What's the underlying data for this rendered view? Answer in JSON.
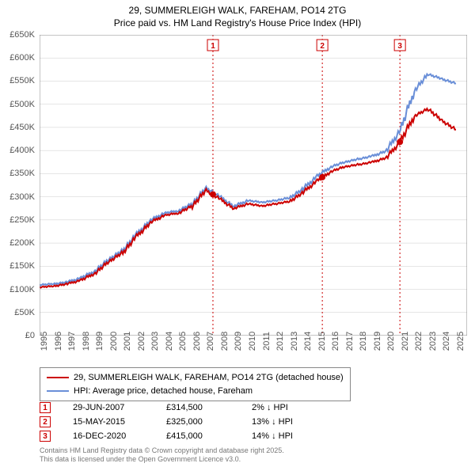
{
  "title": {
    "line1": "29, SUMMERLEIGH WALK, FAREHAM, PO14 2TG",
    "line2": "Price paid vs. HM Land Registry's House Price Index (HPI)",
    "fontsize": 12
  },
  "chart": {
    "type": "line",
    "background_color": "#ffffff",
    "grid_color": "#cccccc",
    "axis_color": "#888888",
    "x": {
      "years": [
        1995,
        1996,
        1997,
        1998,
        1999,
        2000,
        2001,
        2002,
        2003,
        2004,
        2005,
        2006,
        2007,
        2008,
        2009,
        2010,
        2011,
        2012,
        2013,
        2014,
        2015,
        2016,
        2017,
        2018,
        2019,
        2020,
        2021,
        2022,
        2023,
        2024,
        2025
      ],
      "min": 1995,
      "max": 2025.8
    },
    "y": {
      "min": 0,
      "max": 650,
      "step": 50,
      "labels": [
        "£0",
        "£50K",
        "£100K",
        "£150K",
        "£200K",
        "£250K",
        "£300K",
        "£350K",
        "£400K",
        "£450K",
        "£500K",
        "£550K",
        "£600K",
        "£650K"
      ]
    },
    "series": [
      {
        "name": "29, SUMMERLEIGH WALK, FAREHAM, PO14 2TG (detached house)",
        "color": "#cc0000",
        "width": 2,
        "data_yearly": [
          105,
          107,
          112,
          120,
          135,
          160,
          180,
          215,
          245,
          260,
          265,
          280,
          315,
          295,
          275,
          285,
          280,
          285,
          290,
          310,
          335,
          355,
          365,
          370,
          375,
          385,
          420,
          475,
          490,
          465,
          445
        ]
      },
      {
        "name": "HPI: Average price, detached house, Fareham",
        "color": "#6a8fd8",
        "width": 2,
        "data_yearly": [
          110,
          112,
          116,
          125,
          140,
          165,
          185,
          220,
          250,
          265,
          270,
          285,
          320,
          300,
          280,
          292,
          288,
          292,
          298,
          318,
          345,
          365,
          375,
          382,
          388,
          400,
          445,
          530,
          565,
          555,
          545
        ]
      }
    ],
    "markers": [
      {
        "num": "1",
        "year_frac": 2007.49,
        "date": "29-JUN-2007",
        "price": "£314,500",
        "delta": "2% ↓ HPI"
      },
      {
        "num": "2",
        "year_frac": 2015.37,
        "date": "15-MAY-2015",
        "price": "£325,000",
        "delta": "13% ↓ HPI"
      },
      {
        "num": "3",
        "year_frac": 2020.96,
        "date": "16-DEC-2020",
        "price": "£415,000",
        "delta": "14% ↓ HPI"
      }
    ],
    "marker_line_color": "#cc0000",
    "marker_box_border": "#cc0000",
    "marker_box_text": "#cc0000"
  },
  "legend": {
    "items": [
      {
        "color": "#cc0000",
        "label": "29, SUMMERLEIGH WALK, FAREHAM, PO14 2TG (detached house)"
      },
      {
        "color": "#6a8fd8",
        "label": "HPI: Average price, detached house, Fareham"
      }
    ]
  },
  "footer": {
    "line1": "Contains HM Land Registry data © Crown copyright and database right 2025.",
    "line2": "This data is licensed under the Open Government Licence v3.0."
  }
}
